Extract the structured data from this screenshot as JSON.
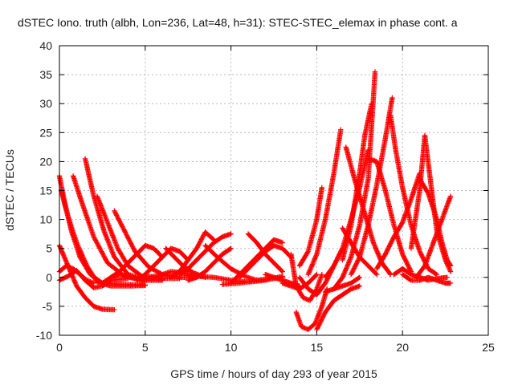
{
  "chart_data": {
    "type": "scatter",
    "title": "dSTEC Iono. truth (albh, Lon=236, Lat=48, h=31): STEC-STEC_elemax in phase cont. a",
    "xlabel": "GPS time / hours of day 293 of year 2015",
    "ylabel": "dSTEC  / TECUs",
    "xlim": [
      0,
      25
    ],
    "ylim": [
      -10,
      40
    ],
    "xticks": [
      0,
      5,
      10,
      15,
      20,
      25
    ],
    "yticks": [
      -10,
      -5,
      0,
      5,
      10,
      15,
      20,
      25,
      30,
      35,
      40
    ],
    "grid": true,
    "marker": "plus",
    "color": "#ff0000",
    "series": [
      {
        "x": [
          0.0,
          0.5,
          1.0,
          1.5,
          2.0,
          2.5,
          3.2
        ],
        "y": [
          5.5,
          2.0,
          -1.5,
          -3.5,
          -5.0,
          -5.5,
          -5.6
        ]
      },
      {
        "x": [
          0.0,
          0.3,
          0.7,
          1.2,
          1.8,
          2.5,
          3.5,
          4.5,
          5.0
        ],
        "y": [
          17.5,
          13.0,
          8.0,
          3.5,
          0.5,
          -1.0,
          -1.2,
          -1.3,
          -1.3
        ]
      },
      {
        "x": [
          0.1,
          0.5,
          1.0,
          1.6,
          2.2,
          3.0,
          4.0,
          5.0
        ],
        "y": [
          15.0,
          10.5,
          6.0,
          2.0,
          -0.8,
          -1.5,
          -1.5,
          -1.4
        ]
      },
      {
        "x": [
          0.0,
          0.5,
          1.0,
          1.5,
          2.0,
          2.5,
          3.0,
          4.0
        ],
        "y": [
          -0.5,
          0.2,
          1.2,
          -0.5,
          -1.8,
          -1.5,
          -0.5,
          -0.2
        ]
      },
      {
        "x": [
          0.0,
          0.4,
          0.8,
          1.2,
          1.6,
          2.0
        ],
        "y": [
          1.0,
          2.0,
          1.5,
          0.5,
          -0.5,
          -1.0
        ]
      },
      {
        "x": [
          0.8,
          1.3,
          2.0,
          2.8,
          3.8,
          4.8,
          6.0
        ],
        "y": [
          17.5,
          13.0,
          7.0,
          2.5,
          0.2,
          -0.5,
          -0.5
        ]
      },
      {
        "x": [
          1.5,
          2.0,
          2.6,
          3.2,
          4.0,
          5.0,
          6.0
        ],
        "y": [
          20.5,
          14.0,
          8.0,
          3.5,
          0.5,
          -0.3,
          -0.3
        ]
      },
      {
        "x": [
          2.2,
          2.8,
          3.4,
          4.0,
          4.8,
          5.8,
          7.0
        ],
        "y": [
          14.0,
          9.5,
          5.0,
          2.0,
          0.2,
          -0.2,
          -0.2
        ]
      },
      {
        "x": [
          3.2,
          3.8,
          4.4,
          5.2,
          6.0,
          7.0,
          8.0
        ],
        "y": [
          11.5,
          8.0,
          4.5,
          1.8,
          0.5,
          0.0,
          0.0
        ]
      },
      {
        "x": [
          2.5,
          3.0,
          3.5,
          4.2,
          5.0
        ],
        "y": [
          -1.0,
          0.0,
          0.5,
          0.0,
          -0.5
        ]
      },
      {
        "x": [
          3.0,
          3.5,
          4.0,
          4.5,
          5.0,
          5.5,
          6.0
        ],
        "y": [
          0.0,
          1.0,
          2.5,
          4.0,
          5.5,
          5.0,
          3.5
        ]
      },
      {
        "x": [
          4.5,
          5.0,
          5.5,
          6.0,
          6.5,
          7.0,
          7.5
        ],
        "y": [
          -0.5,
          0.5,
          2.0,
          3.5,
          5.0,
          4.5,
          3.0
        ]
      },
      {
        "x": [
          5.0,
          5.8,
          6.5,
          7.2,
          8.0
        ],
        "y": [
          0.0,
          0.3,
          1.0,
          0.8,
          0.2
        ]
      },
      {
        "x": [
          6.2,
          6.7,
          7.2,
          7.8,
          8.5
        ],
        "y": [
          5.0,
          3.5,
          2.0,
          0.8,
          0.0
        ]
      },
      {
        "x": [
          6.5,
          7.0,
          7.5,
          8.0,
          8.5,
          9.0
        ],
        "y": [
          0.0,
          1.0,
          3.0,
          5.0,
          7.8,
          6.5
        ]
      },
      {
        "x": [
          7.0,
          7.5,
          8.0,
          8.5,
          9.0,
          9.5,
          10.0
        ],
        "y": [
          0.5,
          1.5,
          3.0,
          4.5,
          6.0,
          7.0,
          7.5
        ]
      },
      {
        "x": [
          7.5,
          8.0,
          8.5,
          9.0,
          9.5,
          10.0
        ],
        "y": [
          -0.5,
          0.0,
          1.0,
          2.5,
          4.0,
          5.0
        ]
      },
      {
        "x": [
          8.5,
          9.2,
          10.0,
          10.8,
          11.5
        ],
        "y": [
          5.5,
          3.5,
          1.5,
          0.2,
          -0.5
        ]
      },
      {
        "x": [
          8.0,
          9.0,
          10.0,
          11.0,
          12.0,
          13.0
        ],
        "y": [
          0.2,
          0.0,
          -0.5,
          -0.8,
          -0.5,
          0.2
        ]
      },
      {
        "x": [
          9.5,
          10.5,
          11.5,
          12.5,
          13.0
        ],
        "y": [
          -1.2,
          -1.0,
          -0.5,
          -0.2,
          0.0
        ]
      },
      {
        "x": [
          10.0,
          10.5,
          11.0,
          11.5,
          12.0,
          12.5,
          13.0
        ],
        "y": [
          -1.0,
          0.5,
          2.0,
          3.5,
          5.0,
          6.5,
          6.0
        ]
      },
      {
        "x": [
          10.5,
          11.0,
          11.5,
          12.0,
          12.5,
          13.0,
          13.5
        ],
        "y": [
          0.0,
          1.5,
          3.0,
          4.5,
          5.5,
          5.0,
          3.5
        ]
      },
      {
        "x": [
          11.0,
          11.5,
          12.0,
          12.5,
          13.0
        ],
        "y": [
          7.5,
          6.0,
          4.0,
          2.5,
          1.0
        ]
      },
      {
        "x": [
          12.0,
          12.5,
          13.0,
          13.5,
          14.0
        ],
        "y": [
          0.5,
          0.0,
          -0.5,
          -1.0,
          -1.5
        ]
      },
      {
        "x": [
          13.0,
          13.5,
          14.0,
          14.5,
          15.0
        ],
        "y": [
          -1.0,
          -1.5,
          -2.0,
          -1.0,
          0.5
        ]
      },
      {
        "x": [
          13.5,
          13.8,
          14.2,
          14.6,
          15.0,
          15.3
        ],
        "y": [
          4.0,
          -1.5,
          -3.5,
          -4.0,
          -2.0,
          0.5
        ]
      },
      {
        "x": [
          13.8,
          14.1,
          14.5,
          14.9,
          15.3,
          15.6
        ],
        "y": [
          -6.0,
          -8.5,
          -9.0,
          -8.0,
          -5.0,
          -2.0
        ]
      },
      {
        "x": [
          14.0,
          14.5,
          15.0,
          15.5,
          16.0,
          16.5
        ],
        "y": [
          0.0,
          -2.0,
          -3.0,
          -1.0,
          2.0,
          5.0
        ]
      },
      {
        "x": [
          14.0,
          14.5,
          15.0,
          15.3
        ],
        "y": [
          2.0,
          4.5,
          10.0,
          15.5
        ]
      },
      {
        "x": [
          15.0,
          15.5,
          16.0,
          16.5,
          17.0,
          17.5
        ],
        "y": [
          -9.0,
          -6.0,
          -4.0,
          -3.0,
          -2.0,
          -1.5
        ]
      },
      {
        "x": [
          15.5,
          16.0,
          16.5,
          17.0,
          17.5
        ],
        "y": [
          -2.5,
          -2.0,
          -1.5,
          -1.0,
          0.0
        ]
      },
      {
        "x": [
          14.5,
          15.0,
          15.5,
          16.0,
          16.4
        ],
        "y": [
          0.5,
          4.0,
          10.0,
          18.0,
          25.5
        ]
      },
      {
        "x": [
          15.5,
          16.0,
          16.5,
          17.0,
          17.5,
          18.0
        ],
        "y": [
          0.0,
          2.0,
          5.0,
          10.0,
          15.5,
          22.0
        ]
      },
      {
        "x": [
          16.0,
          16.5,
          17.0,
          17.5,
          18.0,
          18.4
        ],
        "y": [
          -2.0,
          0.0,
          3.5,
          9.0,
          17.0,
          35.5
        ]
      },
      {
        "x": [
          16.5,
          17.0,
          17.5,
          17.8,
          18.2
        ],
        "y": [
          3.0,
          9.0,
          18.0,
          24.5,
          30.0
        ]
      },
      {
        "x": [
          16.7,
          17.2,
          17.8,
          18.3,
          18.8,
          19.3
        ],
        "y": [
          22.5,
          17.0,
          11.0,
          6.0,
          2.5,
          0.5
        ]
      },
      {
        "x": [
          16.5,
          17.0,
          17.5,
          18.0,
          18.5
        ],
        "y": [
          8.5,
          6.0,
          3.5,
          2.0,
          0.5
        ]
      },
      {
        "x": [
          17.0,
          17.5,
          18.0,
          18.5,
          19.0,
          19.4
        ],
        "y": [
          0.5,
          3.5,
          9.0,
          16.0,
          24.0,
          31.0
        ]
      },
      {
        "x": [
          18.0,
          18.5,
          19.0,
          19.5,
          20.0,
          20.5
        ],
        "y": [
          20.5,
          20.0,
          15.0,
          9.0,
          4.0,
          1.0
        ]
      },
      {
        "x": [
          18.5,
          19.0,
          19.5,
          20.0,
          20.5,
          21.0
        ],
        "y": [
          1.5,
          4.0,
          7.0,
          9.5,
          13.5,
          18.0
        ]
      },
      {
        "x": [
          19.3,
          19.6,
          20.0,
          20.5,
          21.0,
          21.5,
          22.0
        ],
        "y": [
          28.0,
          22.0,
          15.5,
          9.0,
          4.5,
          1.5,
          0.5
        ]
      },
      {
        "x": [
          20.5,
          21.0,
          21.3,
          21.7,
          22.0,
          22.5,
          22.8
        ],
        "y": [
          5.0,
          15.0,
          24.5,
          15.0,
          8.0,
          3.0,
          1.0
        ]
      },
      {
        "x": [
          19.5,
          20.0,
          20.5,
          21.0,
          21.5,
          22.0,
          22.6
        ],
        "y": [
          0.5,
          1.5,
          0.5,
          0.0,
          -0.5,
          -0.2,
          0.0
        ]
      },
      {
        "x": [
          21.0,
          21.5,
          22.0,
          22.3,
          22.6,
          22.8
        ],
        "y": [
          17.0,
          14.5,
          10.0,
          6.0,
          3.0,
          2.0
        ]
      },
      {
        "x": [
          20.0,
          20.5,
          21.0,
          21.5,
          22.0,
          22.5,
          22.8
        ],
        "y": [
          0.5,
          -0.5,
          -0.5,
          0.0,
          -0.5,
          -1.0,
          -1.0
        ]
      },
      {
        "x": [
          20.8,
          21.3,
          21.8,
          22.3,
          22.8
        ],
        "y": [
          0.0,
          2.0,
          6.0,
          10.0,
          14.0
        ]
      }
    ]
  }
}
